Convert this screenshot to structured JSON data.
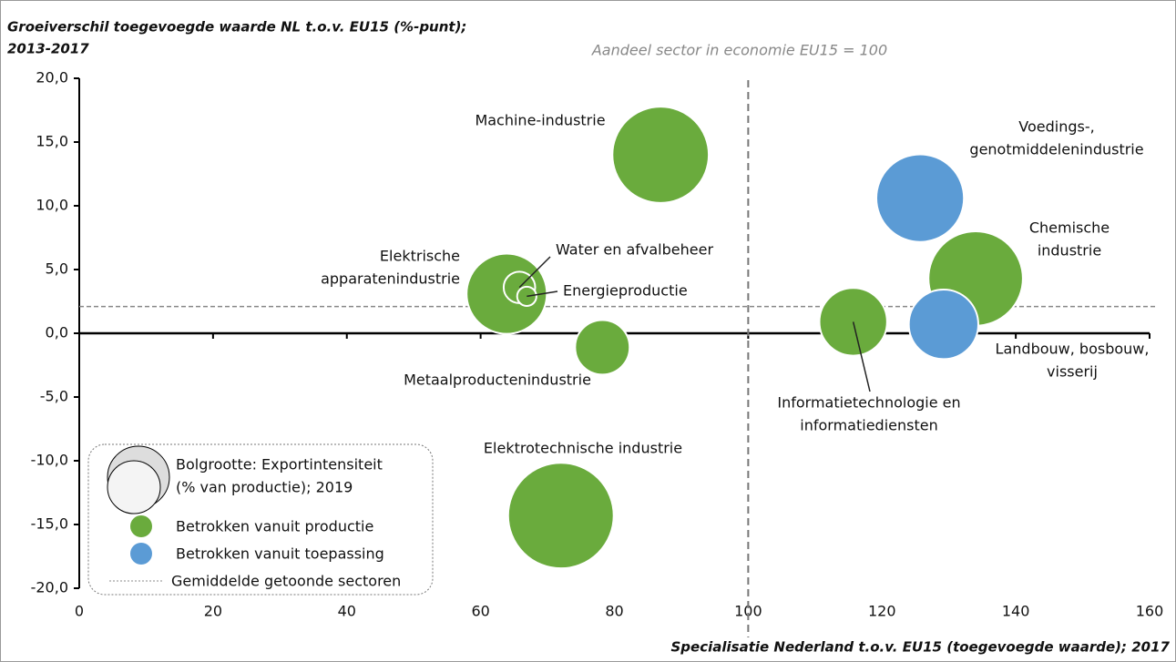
{
  "chart_data": {
    "type": "bubble",
    "ylabel": [
      "Groeiverschil toegevoegde waarde NL t.o.v. EU15 (%-punt);",
      "2013-2017"
    ],
    "xlabel": "Specialisatie Nederland t.o.v. EU15 (toegevoegde waarde); 2017",
    "annotation": "Aandeel sector in economie EU15 = 100",
    "ref_x": 100,
    "avg_y": 2.1,
    "xlim": [
      0,
      160
    ],
    "xticks": [
      0,
      20,
      40,
      60,
      80,
      100,
      120,
      140,
      160
    ],
    "ylim": [
      -20,
      20
    ],
    "yticks": [
      {
        "value": -20,
        "label": "-20,0"
      },
      {
        "value": -15,
        "label": "-15,0"
      },
      {
        "value": -10,
        "label": "-10,0"
      },
      {
        "value": -5,
        "label": "-5,0"
      },
      {
        "value": 0,
        "label": "0,0"
      },
      {
        "value": 5,
        "label": "5,0"
      },
      {
        "value": 10,
        "label": "10,0"
      },
      {
        "value": 15,
        "label": "15,0"
      },
      {
        "value": 20,
        "label": "20,0"
      }
    ],
    "legend_size_label": [
      "Bolgrootte: Exportintensiteit",
      "(% van productie); 2019"
    ],
    "avg_label": "Gemiddelde getoonde sectoren",
    "series": [
      {
        "name": "Betrokken vanuit productie",
        "color": "#6aab3d",
        "labels": [
          [
            "Machine-industrie"
          ],
          [
            "Chemische",
            "industrie"
          ],
          [
            "Informatietechnologie en",
            "informatiediensten"
          ],
          [
            "Elektrische",
            "apparatenindustrie"
          ],
          [
            "Water en afvalbeheer"
          ],
          [
            "Energieproductie"
          ],
          [
            "Metaalproductenindustrie"
          ],
          [
            "Elektrotechnische industrie"
          ]
        ],
        "x": [
          86.9,
          134,
          115.7,
          63.9,
          65.8,
          66.9,
          78.2,
          72
        ],
        "values": [
          14.0,
          4.3,
          0.9,
          3.1,
          3.6,
          2.9,
          -1.1,
          -14.3
        ],
        "sizes": [
          75,
          72,
          37,
          52,
          8,
          3,
          24,
          90
        ]
      },
      {
        "name": "Betrokken vanuit toepassing",
        "color": "#5b9bd5",
        "labels": [
          [
            "Voedings-,",
            "genotmiddelenindustrie"
          ],
          [
            "Landbouw, bosbouw,",
            "visserij"
          ]
        ],
        "x": [
          125.7,
          129.2
        ],
        "values": [
          10.6,
          0.7
        ],
        "sizes": [
          62,
          39
        ]
      }
    ]
  }
}
